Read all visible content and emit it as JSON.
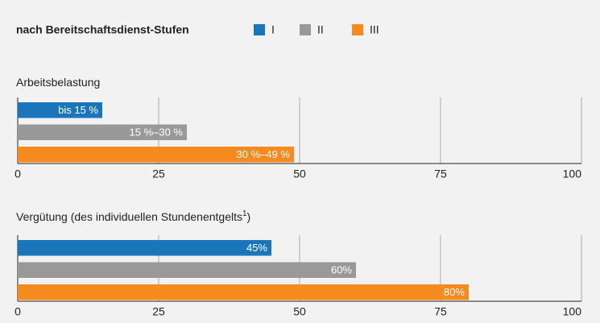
{
  "title": "nach Bereitschaftsdienst-Stufen",
  "legend": [
    {
      "name": "I",
      "color": "#1a75bb"
    },
    {
      "name": "II",
      "color": "#999999"
    },
    {
      "name": "III",
      "color": "#f58a1f"
    }
  ],
  "chart_data": [
    {
      "type": "bar",
      "orientation": "horizontal",
      "title": "Arbeitsbelastung",
      "values": [
        15,
        30,
        49
      ],
      "value_labels": [
        "bis 15 %",
        "15 %–30 %",
        "30 %–49 %"
      ],
      "xlim": [
        0,
        100
      ],
      "xticks": [
        0,
        25,
        50,
        75,
        100
      ],
      "grid": true
    },
    {
      "type": "bar",
      "orientation": "horizontal",
      "title": "Vergütung (des individuellen Stundenentgelts",
      "title_footnote": "1",
      "title_suffix": ")",
      "values": [
        45,
        60,
        80
      ],
      "value_labels": [
        "45%",
        "60%",
        "80%"
      ],
      "xlim": [
        0,
        100
      ],
      "xticks": [
        0,
        25,
        50,
        75,
        100
      ],
      "grid": true
    }
  ]
}
